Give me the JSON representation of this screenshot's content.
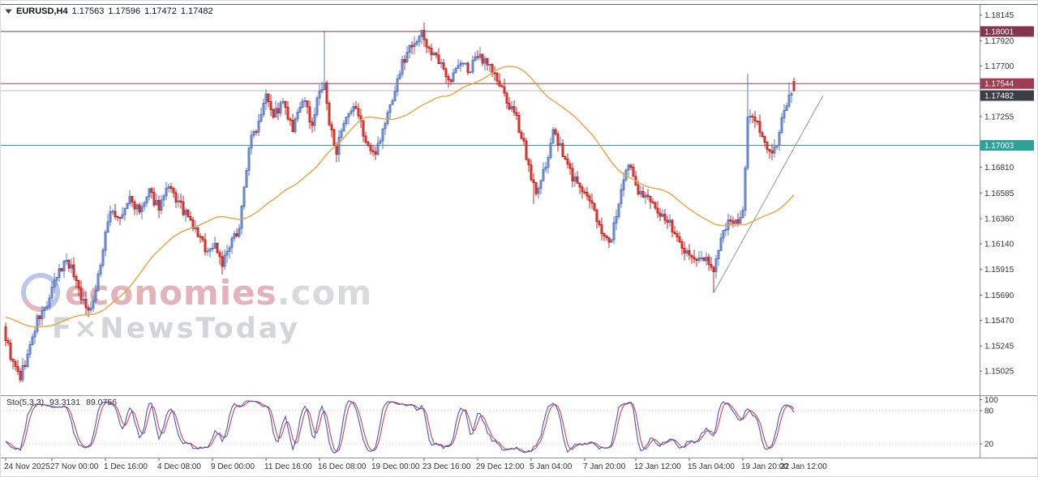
{
  "header": {
    "symbol": "EURUSD,H4",
    "open": "1.17563",
    "high": "1.17596",
    "low": "1.17472",
    "close": "1.17482"
  },
  "watermark": {
    "brand": "economies",
    "tld": ".com",
    "tagline": "F×NewsToday"
  },
  "axis": {
    "price_ticks": [
      "1.18145",
      "1.17920",
      "1.17700",
      "1.17255",
      "1.16810",
      "1.16585",
      "1.16360",
      "1.16140",
      "1.15915",
      "1.15690",
      "1.15470",
      "1.15245",
      "1.15025"
    ],
    "time_labels": [
      {
        "t": "24 Nov 2025",
        "i": 0
      },
      {
        "t": "27 Nov 00:00",
        "i": 19
      },
      {
        "t": "1 Dec 16:00",
        "i": 41
      },
      {
        "t": "4 Dec 08:00",
        "i": 63
      },
      {
        "t": "9 Dec 00:00",
        "i": 85
      },
      {
        "t": "11 Dec 16:00",
        "i": 107
      },
      {
        "t": "16 Dec 08:00",
        "i": 129
      },
      {
        "t": "19 Dec 00:00",
        "i": 151
      },
      {
        "t": "23 Dec 16:00",
        "i": 172
      },
      {
        "t": "29 Dec 12:00",
        "i": 194
      },
      {
        "t": "5 Jan 04:00",
        "i": 216
      },
      {
        "t": "7 Jan 20:00",
        "i": 238
      },
      {
        "t": "12 Jan 12:00",
        "i": 259
      },
      {
        "t": "15 Jan 04:00",
        "i": 281
      },
      {
        "t": "19 Jan 20:00",
        "i": 303
      },
      {
        "t": "22 Jan 12:00",
        "i": 319
      }
    ]
  },
  "chart_data": {
    "type": "candlestick",
    "symbol": "EURUSD",
    "timeframe": "H4",
    "price_range": [
      1.1482,
      1.1822
    ],
    "seed": 9,
    "noise": 0.0009,
    "wick": 0.0007,
    "waypoints": [
      [
        0,
        1.1532
      ],
      [
        3,
        1.1508
      ],
      [
        6,
        1.1497
      ],
      [
        9,
        1.1516
      ],
      [
        13,
        1.1547
      ],
      [
        17,
        1.156
      ],
      [
        21,
        1.1585
      ],
      [
        25,
        1.1601
      ],
      [
        28,
        1.1588
      ],
      [
        33,
        1.1556
      ],
      [
        36,
        1.1564
      ],
      [
        40,
        1.1608
      ],
      [
        43,
        1.1645
      ],
      [
        47,
        1.1634
      ],
      [
        51,
        1.1654
      ],
      [
        55,
        1.1641
      ],
      [
        59,
        1.1658
      ],
      [
        63,
        1.1647
      ],
      [
        67,
        1.1662
      ],
      [
        71,
        1.165
      ],
      [
        75,
        1.1636
      ],
      [
        79,
        1.1622
      ],
      [
        83,
        1.1607
      ],
      [
        86,
        1.1614
      ],
      [
        89,
        1.1597
      ],
      [
        92,
        1.161
      ],
      [
        96,
        1.163
      ],
      [
        98,
        1.1662
      ],
      [
        100,
        1.17
      ],
      [
        104,
        1.1722
      ],
      [
        107,
        1.1749
      ],
      [
        110,
        1.1727
      ],
      [
        114,
        1.1737
      ],
      [
        118,
        1.1712
      ],
      [
        122,
        1.1741
      ],
      [
        126,
        1.1719
      ],
      [
        129,
        1.1748
      ],
      [
        131,
        1.1752
      ],
      [
        133,
        1.1718
      ],
      [
        136,
        1.1697
      ],
      [
        140,
        1.1722
      ],
      [
        144,
        1.1734
      ],
      [
        148,
        1.1704
      ],
      [
        151,
        1.1691
      ],
      [
        155,
        1.1713
      ],
      [
        159,
        1.1742
      ],
      [
        163,
        1.1772
      ],
      [
        167,
        1.1791
      ],
      [
        171,
        1.1797
      ],
      [
        175,
        1.1782
      ],
      [
        179,
        1.1769
      ],
      [
        183,
        1.1759
      ],
      [
        187,
        1.1773
      ],
      [
        191,
        1.1766
      ],
      [
        194,
        1.1779
      ],
      [
        198,
        1.1774
      ],
      [
        202,
        1.1757
      ],
      [
        206,
        1.1739
      ],
      [
        210,
        1.1722
      ],
      [
        213,
        1.1703
      ],
      [
        216,
        1.1668
      ],
      [
        219,
        1.1659
      ],
      [
        222,
        1.1684
      ],
      [
        225,
        1.1713
      ],
      [
        229,
        1.1692
      ],
      [
        233,
        1.1673
      ],
      [
        237,
        1.1661
      ],
      [
        241,
        1.1646
      ],
      [
        245,
        1.1627
      ],
      [
        248,
        1.1613
      ],
      [
        252,
        1.1648
      ],
      [
        256,
        1.1684
      ],
      [
        260,
        1.1662
      ],
      [
        264,
        1.1652
      ],
      [
        268,
        1.1643
      ],
      [
        272,
        1.1634
      ],
      [
        276,
        1.1621
      ],
      [
        280,
        1.1606
      ],
      [
        284,
        1.1598
      ],
      [
        288,
        1.1603
      ],
      [
        291,
        1.1589
      ],
      [
        294,
        1.1616
      ],
      [
        298,
        1.1637
      ],
      [
        301,
        1.1629
      ],
      [
        303,
        1.1646
      ],
      [
        305,
        1.1722
      ],
      [
        308,
        1.1726
      ],
      [
        311,
        1.1709
      ],
      [
        314,
        1.1691
      ],
      [
        317,
        1.1704
      ],
      [
        320,
        1.1733
      ],
      [
        324,
        1.17482
      ]
    ],
    "spikes": [
      {
        "i": 6,
        "low": 1.1494
      },
      {
        "i": 131,
        "high": 1.1801
      },
      {
        "i": 172,
        "high": 1.1808
      },
      {
        "i": 217,
        "low": 1.1649
      },
      {
        "i": 291,
        "low": 1.1571
      },
      {
        "i": 305,
        "high": 1.1763
      },
      {
        "i": 322,
        "high": 1.17555
      }
    ],
    "last_candle": {
      "o": 1.17563,
      "h": 1.17596,
      "l": 1.17472,
      "c": 1.17482
    },
    "candle": {
      "bull": "#7e98d8",
      "bull_border": "#5a78bf",
      "bear": "#e8423a",
      "bear_border": "#c5271f"
    },
    "ma": {
      "period": 50,
      "prehistory": 1.155,
      "color": "#f0a03c"
    },
    "levels": [
      {
        "text": "1.18001",
        "price": 1.18001,
        "color": "#82374f",
        "badge": "#82374f"
      },
      {
        "text": "1.17544",
        "price": 1.17544,
        "color": "#a03c52",
        "badge": "#a03c52"
      },
      {
        "text": "1.17482",
        "price": 1.17482,
        "color": "#b8bcc2",
        "badge": "#3a3f45",
        "badge_dy": 6
      },
      {
        "text": "1.17003",
        "price": 1.17003,
        "color": "#2ba39a",
        "badge": "#2ba39a"
      }
    ],
    "trendline": {
      "i1": 291,
      "p1": 1.1571,
      "i2": 336,
      "p2": 1.1744,
      "color": "#9298a0"
    },
    "stochastic": {
      "label": "Sto(5,3,3)",
      "k_display": "93.3131",
      "d_display": "89.0756",
      "k_period": 5,
      "smooth": 3,
      "d_period": 3,
      "k_color": "#4456c8",
      "d_color": "#cd3333",
      "levels": [
        100,
        80,
        20
      ],
      "dotted_levels": [
        80,
        20
      ],
      "range": [
        0,
        100
      ]
    }
  }
}
